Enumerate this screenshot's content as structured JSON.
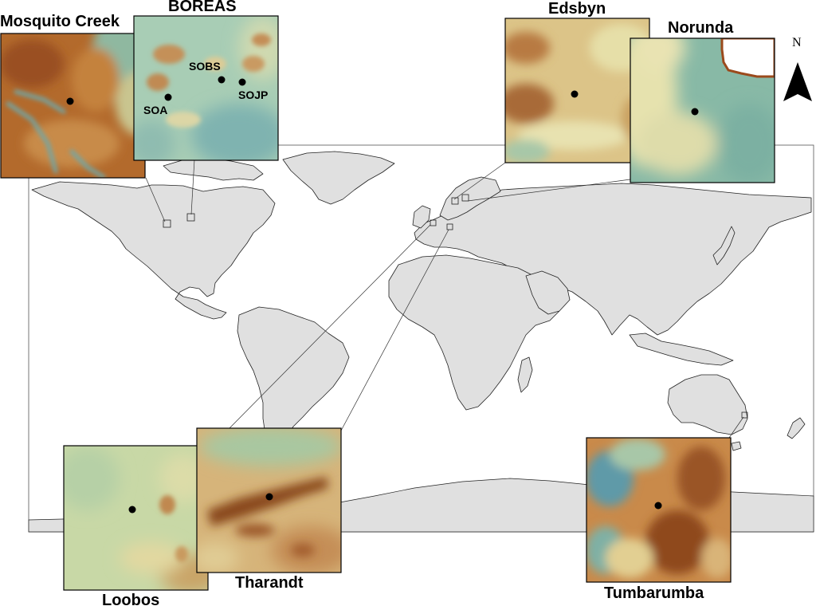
{
  "map": {
    "north_label": "N",
    "sites": [
      {
        "key": "mosquito_creek",
        "name": "Mosquito Creek"
      },
      {
        "key": "boreas",
        "name": "BOREAS",
        "points": [
          "SOBS",
          "SOA",
          "SOJP"
        ]
      },
      {
        "key": "edsbyn",
        "name": "Edsbyn"
      },
      {
        "key": "norunda",
        "name": "Norunda"
      },
      {
        "key": "loobos",
        "name": "Loobos"
      },
      {
        "key": "tharandt",
        "name": "Tharandt"
      },
      {
        "key": "tumbarumba",
        "name": "Tumbarumba"
      }
    ]
  },
  "colors": {
    "land": "#e0e0e0",
    "coast": "#222222",
    "dem_high": "#8a4a1c",
    "dem_mid": "#c98a45",
    "dem_low": "#e9d9a0",
    "dem_lowest": "#7fb3a0",
    "dem_valley": "#4a90a0"
  }
}
